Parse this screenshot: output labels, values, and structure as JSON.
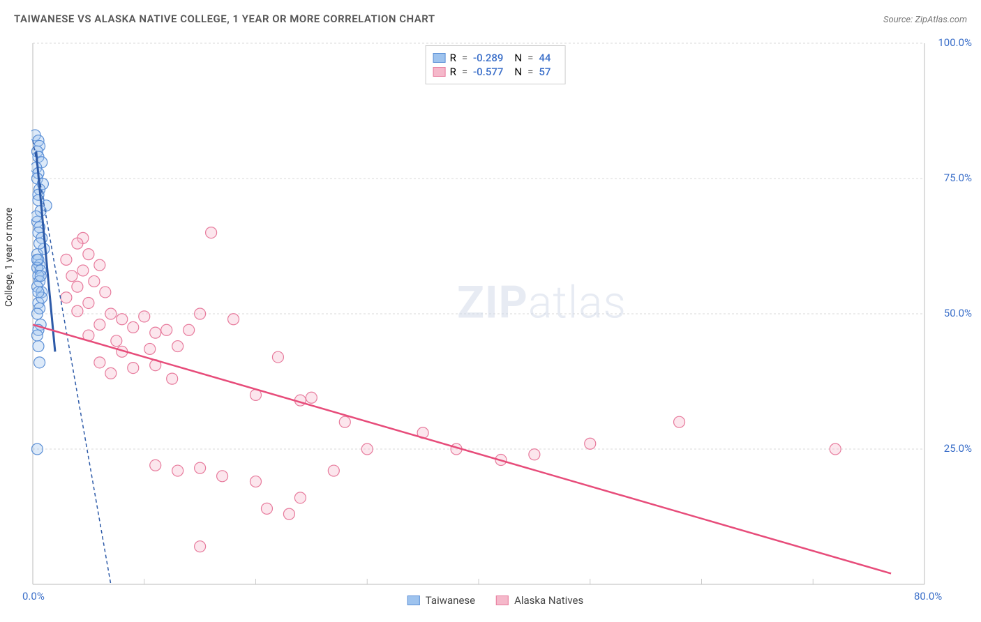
{
  "header": {
    "title": "TAIWANESE VS ALASKA NATIVE COLLEGE, 1 YEAR OR MORE CORRELATION CHART",
    "source_prefix": "Source: ",
    "source_name": "ZipAtlas.com"
  },
  "chart": {
    "type": "scatter",
    "y_axis_label": "College, 1 year or more",
    "background_color": "#ffffff",
    "grid_color": "#d8d8d8",
    "axis_color": "#bbbbbb",
    "tick_color": "#cccccc",
    "xlim": [
      0,
      80
    ],
    "ylim": [
      0,
      100
    ],
    "x_tick_step": 10,
    "y_tick_step": 25,
    "x_tick_labels": {
      "0": "0.0%",
      "80": "80.0%"
    },
    "y_tick_labels": {
      "25": "25.0%",
      "50": "50.0%",
      "75": "75.0%",
      "100": "100.0%"
    },
    "marker_radius": 8,
    "watermark": {
      "zip": "ZIP",
      "atlas": "atlas"
    }
  },
  "series": {
    "taiwanese": {
      "label": "Taiwanese",
      "color_fill": "#9ec3ee",
      "color_stroke": "#5b8fd6",
      "R": "-0.289",
      "N": "44",
      "trend": {
        "x1": 0,
        "y1": 82,
        "x2": 7,
        "y2": 0,
        "color": "#2d5aa8",
        "dash": "5 4",
        "width": 1.5
      },
      "trend_solid": {
        "x1": 0.3,
        "y1": 80,
        "x2": 2,
        "y2": 43,
        "color": "#2d5aa8",
        "width": 3
      },
      "points": [
        [
          0.2,
          83
        ],
        [
          0.5,
          82
        ],
        [
          0.6,
          81
        ],
        [
          0.4,
          80
        ],
        [
          0.5,
          79
        ],
        [
          0.8,
          78
        ],
        [
          0.3,
          77
        ],
        [
          0.5,
          76
        ],
        [
          0.4,
          75
        ],
        [
          0.9,
          74
        ],
        [
          0.6,
          73
        ],
        [
          0.5,
          72
        ],
        [
          1.2,
          70
        ],
        [
          0.7,
          69
        ],
        [
          0.4,
          67
        ],
        [
          0.6,
          66
        ],
        [
          0.5,
          65
        ],
        [
          0.8,
          64
        ],
        [
          0.4,
          61
        ],
        [
          0.5,
          60
        ],
        [
          0.6,
          59
        ],
        [
          0.4,
          58.5
        ],
        [
          0.7,
          58
        ],
        [
          0.5,
          57
        ],
        [
          0.6,
          56
        ],
        [
          0.4,
          55
        ],
        [
          0.8,
          54
        ],
        [
          0.5,
          52
        ],
        [
          0.6,
          51
        ],
        [
          0.4,
          50
        ],
        [
          0.7,
          48
        ],
        [
          0.5,
          44
        ],
        [
          0.6,
          41
        ],
        [
          0.4,
          25
        ],
        [
          0.8,
          53
        ],
        [
          1.0,
          62
        ],
        [
          0.3,
          68
        ],
        [
          0.5,
          47
        ],
        [
          0.4,
          46
        ],
        [
          0.6,
          63
        ],
        [
          0.5,
          71
        ],
        [
          0.4,
          60
        ],
        [
          0.7,
          57
        ],
        [
          0.5,
          54
        ]
      ]
    },
    "alaska": {
      "label": "Alaska Natives",
      "color_fill": "#f5b8ca",
      "color_stroke": "#e77a9c",
      "R": "-0.577",
      "N": "57",
      "trend": {
        "x1": 0,
        "y1": 48,
        "x2": 77,
        "y2": 2,
        "color": "#e74c7a",
        "dash": "none",
        "width": 2.5
      },
      "points": [
        [
          4.5,
          64
        ],
        [
          4,
          63
        ],
        [
          5,
          61
        ],
        [
          3,
          60
        ],
        [
          6,
          59
        ],
        [
          4.5,
          58
        ],
        [
          3.5,
          57
        ],
        [
          5.5,
          56
        ],
        [
          4,
          55
        ],
        [
          6.5,
          54
        ],
        [
          3,
          53
        ],
        [
          5,
          52
        ],
        [
          16,
          65
        ],
        [
          7,
          50
        ],
        [
          4,
          50.5
        ],
        [
          8,
          49
        ],
        [
          10,
          49.5
        ],
        [
          6,
          48
        ],
        [
          12,
          47
        ],
        [
          9,
          47.5
        ],
        [
          5,
          46
        ],
        [
          11,
          46.5
        ],
        [
          7.5,
          45
        ],
        [
          13,
          44
        ],
        [
          8,
          43
        ],
        [
          10.5,
          43.5
        ],
        [
          6,
          41
        ],
        [
          14,
          47
        ],
        [
          9,
          40
        ],
        [
          11,
          40.5
        ],
        [
          7,
          39
        ],
        [
          15,
          50
        ],
        [
          12.5,
          38
        ],
        [
          18,
          49
        ],
        [
          22,
          42
        ],
        [
          24,
          34
        ],
        [
          25,
          34.5
        ],
        [
          20,
          35
        ],
        [
          28,
          30
        ],
        [
          11,
          22
        ],
        [
          13,
          21
        ],
        [
          15,
          21.5
        ],
        [
          17,
          20
        ],
        [
          21,
          14
        ],
        [
          23,
          13
        ],
        [
          20,
          19
        ],
        [
          27,
          21
        ],
        [
          30,
          25
        ],
        [
          35,
          28
        ],
        [
          38,
          25
        ],
        [
          42,
          23
        ],
        [
          45,
          24
        ],
        [
          50,
          26
        ],
        [
          58,
          30
        ],
        [
          72,
          25
        ],
        [
          15,
          7
        ],
        [
          24,
          16
        ]
      ]
    }
  },
  "legend_top": {
    "R_label": "R",
    "N_label": "N",
    "equals": " = "
  }
}
